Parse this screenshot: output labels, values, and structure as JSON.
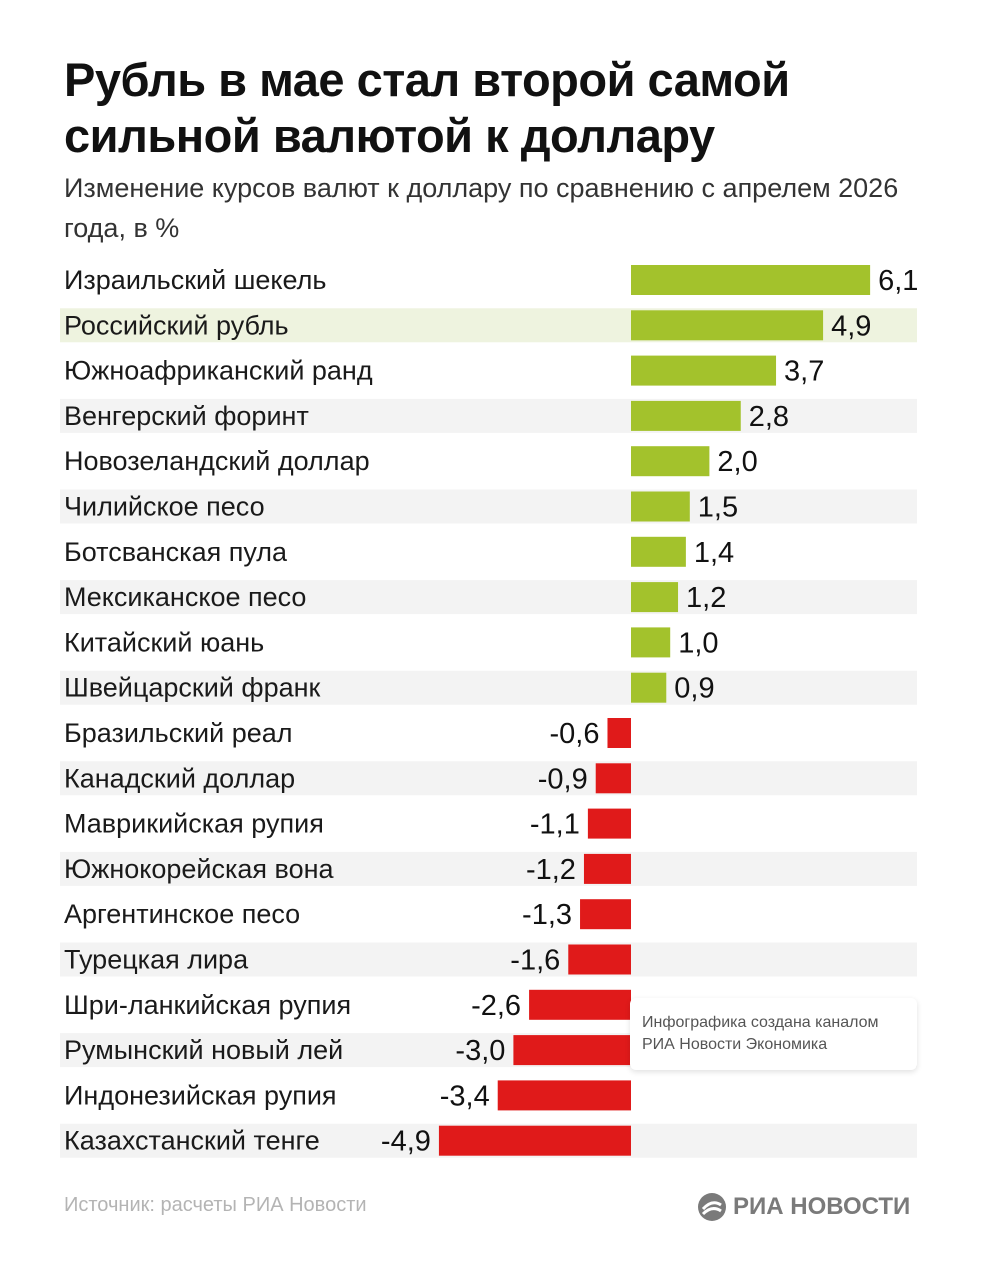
{
  "header": {
    "title": "Рубль в мае стал второй самой сильной валютой к доллару",
    "subtitle": "Изменение курсов валют к доллару по сравнению с апрелем 2026 года, в %"
  },
  "footer": {
    "source": "Источник: расчеты РИА Новости",
    "logo_text": "РИА НОВОСТИ"
  },
  "note": {
    "line1": "Инфографика создана каналом",
    "line2": "РИА Новости Экономика"
  },
  "colors": {
    "positive": "#a3c22c",
    "negative": "#e01a1a",
    "highlight_row": "#eef3df",
    "stripe_row": "#f3f3f3"
  },
  "chart_data": {
    "type": "bar",
    "orientation": "horizontal",
    "highlight": "Российский рубль",
    "categories": [
      "Израильский шекель",
      "Российский рубль",
      "Южноафриканский ранд",
      "Венгерский форинт",
      "Новозеландский доллар",
      "Чилийское песо",
      "Ботсванская пула",
      "Мексиканское песо",
      "Китайский юань",
      "Швейцарский франк",
      "Бразильский реал",
      "Канадский доллар",
      "Маврикийская рупия",
      "Южнокорейская вона",
      "Аргентинское песо",
      "Турецкая лира",
      "Шри-ланкийская рупия",
      "Румынский новый лей",
      "Индонезийская рупия",
      "Казахстанский тенге"
    ],
    "values": [
      6.1,
      4.9,
      3.7,
      2.8,
      2.0,
      1.5,
      1.4,
      1.2,
      1.0,
      0.9,
      -0.6,
      -0.9,
      -1.1,
      -1.2,
      -1.3,
      -1.6,
      -2.6,
      -3.0,
      -3.4,
      -4.9
    ],
    "value_labels": [
      "6,1",
      "4,9",
      "3,7",
      "2,8",
      "2,0",
      "1,5",
      "1,4",
      "1,2",
      "1,0",
      "0,9",
      "-0,6",
      "-0,9",
      "-1,1",
      "-1,2",
      "-1,3",
      "-1,6",
      "-2,6",
      "-3,0",
      "-3,4",
      "-4,9"
    ]
  }
}
